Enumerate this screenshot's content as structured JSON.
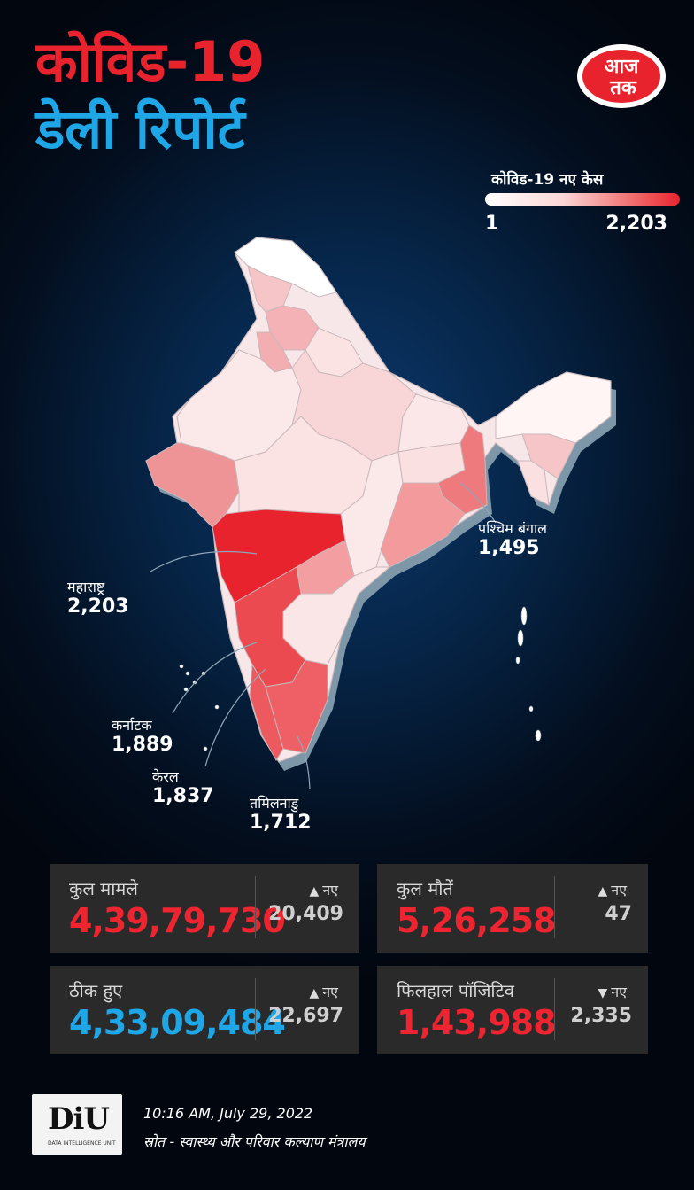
{
  "title": {
    "line1": "कोविड-19",
    "line2": "डेली रिपोर्ट"
  },
  "logo": {
    "text": "आज तक"
  },
  "legend": {
    "title": "कोविड-19 नए केस",
    "min": "1",
    "max": "2,203"
  },
  "map_labels": [
    {
      "name": "महाराष्ट्र",
      "value": "2,203"
    },
    {
      "name": "पश्चिम बंगाल",
      "value": "1,495"
    },
    {
      "name": "कर्नाटक",
      "value": "1,889"
    },
    {
      "name": "केरल",
      "value": "1,837"
    },
    {
      "name": "तमिलनाडु",
      "value": "1,712"
    }
  ],
  "stats": {
    "total": {
      "label": "कुल मामले",
      "value": "4,39,79,730",
      "new_label": "नए",
      "new_value": "20,409",
      "trend": "up"
    },
    "deaths": {
      "label": "कुल मौतें",
      "value": "5,26,258",
      "new_label": "नए",
      "new_value": "47",
      "trend": "up"
    },
    "recovered": {
      "label": "ठीक हुए",
      "value": "4,33,09,484",
      "new_label": "नए",
      "new_value": "22,697",
      "trend": "up"
    },
    "active": {
      "label": "फिलहाल पॉजिटिव",
      "value": "1,43,988",
      "new_label": "नए",
      "new_value": "2,335",
      "trend": "down"
    }
  },
  "footer": {
    "badge": "DiU",
    "badge_sub": "DATA INTELLIGENCE UNIT",
    "timestamp": "10:16 AM, July 29, 2022",
    "source": "स्रोत - स्वास्थ्य और परिवार कल्याण मंत्रालय"
  },
  "colors": {
    "red": "#e8232e",
    "blue": "#1ea6e6",
    "card": "#2a2a2a"
  }
}
